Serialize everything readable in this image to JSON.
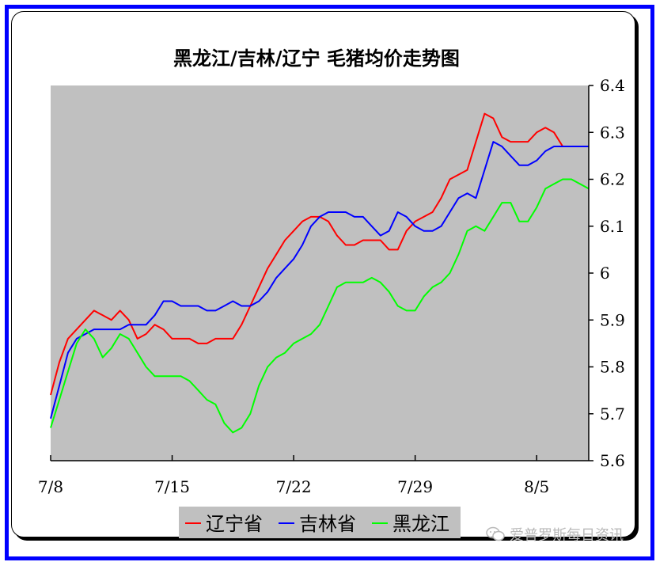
{
  "chart_data": {
    "type": "line",
    "title": "黑龙江/吉林/辽宁 毛猪均价走势图",
    "xlabel": "",
    "ylabel": "",
    "ylim": [
      5.6,
      6.4
    ],
    "yticks": [
      "5.6",
      "5.7",
      "5.8",
      "5.9",
      "6",
      "6.1",
      "6.2",
      "6.3",
      "6.4"
    ],
    "x_range": [
      0,
      31
    ],
    "xticks": [
      {
        "x": 0,
        "label": "7/8"
      },
      {
        "x": 7,
        "label": "7/15"
      },
      {
        "x": 14,
        "label": "7/22"
      },
      {
        "x": 21,
        "label": "7/29"
      },
      {
        "x": 28,
        "label": "8/5"
      }
    ],
    "background_color": "#c0c0c0",
    "grid": false,
    "legend_position": "bottom",
    "series": [
      {
        "name": "辽宁省",
        "color": "#ff0000",
        "x": [
          0,
          0.5,
          1,
          1.5,
          2,
          2.5,
          3,
          3.5,
          4,
          4.5,
          5,
          5.5,
          6,
          6.5,
          7,
          7.5,
          8,
          8.5,
          9,
          9.5,
          10,
          10.5,
          11,
          11.5,
          12,
          12.5,
          13,
          13.5,
          14,
          14.5,
          15,
          15.5,
          16,
          16.5,
          17,
          17.5,
          18,
          18.5,
          19,
          19.5,
          20,
          20.5,
          21,
          21.5,
          22,
          22.5,
          23,
          23.5,
          24,
          24.5,
          25,
          25.5,
          26,
          26.5,
          27,
          27.5,
          28,
          28.5,
          29,
          29.5,
          30,
          30.5,
          31
        ],
        "values": [
          5.74,
          5.81,
          5.86,
          5.88,
          5.9,
          5.92,
          5.91,
          5.9,
          5.92,
          5.9,
          5.86,
          5.87,
          5.89,
          5.88,
          5.86,
          5.86,
          5.86,
          5.85,
          5.85,
          5.86,
          5.86,
          5.86,
          5.89,
          5.93,
          5.97,
          6.01,
          6.04,
          6.07,
          6.09,
          6.11,
          6.12,
          6.12,
          6.11,
          6.08,
          6.06,
          6.06,
          6.07,
          6.07,
          6.07,
          6.05,
          6.05,
          6.09,
          6.11,
          6.12,
          6.13,
          6.16,
          6.2,
          6.21,
          6.22,
          6.28,
          6.34,
          6.33,
          6.29,
          6.28,
          6.28,
          6.28,
          6.3,
          6.31,
          6.3,
          6.27,
          6.27,
          6.27,
          6.27
        ]
      },
      {
        "name": "吉林省",
        "color": "#0000ff",
        "x": [
          0,
          0.5,
          1,
          1.5,
          2,
          2.5,
          3,
          3.5,
          4,
          4.5,
          5,
          5.5,
          6,
          6.5,
          7,
          7.5,
          8,
          8.5,
          9,
          9.5,
          10,
          10.5,
          11,
          11.5,
          12,
          12.5,
          13,
          13.5,
          14,
          14.5,
          15,
          15.5,
          16,
          16.5,
          17,
          17.5,
          18,
          18.5,
          19,
          19.5,
          20,
          20.5,
          21,
          21.5,
          22,
          22.5,
          23,
          23.5,
          24,
          24.5,
          25,
          25.5,
          26,
          26.5,
          27,
          27.5,
          28,
          28.5,
          29,
          29.5,
          30,
          30.5,
          31
        ],
        "values": [
          5.69,
          5.76,
          5.83,
          5.86,
          5.87,
          5.88,
          5.88,
          5.88,
          5.88,
          5.89,
          5.89,
          5.89,
          5.91,
          5.94,
          5.94,
          5.93,
          5.93,
          5.93,
          5.92,
          5.92,
          5.93,
          5.94,
          5.93,
          5.93,
          5.94,
          5.96,
          5.99,
          6.01,
          6.03,
          6.06,
          6.1,
          6.12,
          6.13,
          6.13,
          6.13,
          6.12,
          6.12,
          6.1,
          6.08,
          6.09,
          6.13,
          6.12,
          6.1,
          6.09,
          6.09,
          6.1,
          6.13,
          6.16,
          6.17,
          6.16,
          6.22,
          6.28,
          6.27,
          6.25,
          6.23,
          6.23,
          6.24,
          6.26,
          6.27,
          6.27,
          6.27,
          6.27,
          6.27
        ]
      },
      {
        "name": "黑龙江",
        "color": "#00ff00",
        "x": [
          0,
          0.5,
          1,
          1.5,
          2,
          2.5,
          3,
          3.5,
          4,
          4.5,
          5,
          5.5,
          6,
          6.5,
          7,
          7.5,
          8,
          8.5,
          9,
          9.5,
          10,
          10.5,
          11,
          11.5,
          12,
          12.5,
          13,
          13.5,
          14,
          14.5,
          15,
          15.5,
          16,
          16.5,
          17,
          17.5,
          18,
          18.5,
          19,
          19.5,
          20,
          20.5,
          21,
          21.5,
          22,
          22.5,
          23,
          23.5,
          24,
          24.5,
          25,
          25.5,
          26,
          26.5,
          27,
          27.5,
          28,
          28.5,
          29,
          29.5,
          30,
          30.5,
          31
        ],
        "values": [
          5.67,
          5.73,
          5.79,
          5.85,
          5.88,
          5.86,
          5.82,
          5.84,
          5.87,
          5.86,
          5.83,
          5.8,
          5.78,
          5.78,
          5.78,
          5.78,
          5.77,
          5.75,
          5.73,
          5.72,
          5.68,
          5.66,
          5.67,
          5.7,
          5.76,
          5.8,
          5.82,
          5.83,
          5.85,
          5.86,
          5.87,
          5.89,
          5.93,
          5.97,
          5.98,
          5.98,
          5.98,
          5.99,
          5.98,
          5.96,
          5.93,
          5.92,
          5.92,
          5.95,
          5.97,
          5.98,
          6.0,
          6.04,
          6.09,
          6.1,
          6.09,
          6.12,
          6.15,
          6.15,
          6.11,
          6.11,
          6.14,
          6.18,
          6.19,
          6.2,
          6.2,
          6.19,
          6.18
        ]
      }
    ]
  },
  "watermark": {
    "icon": "wechat-icon",
    "text": "爱普罗斯每日资讯"
  }
}
